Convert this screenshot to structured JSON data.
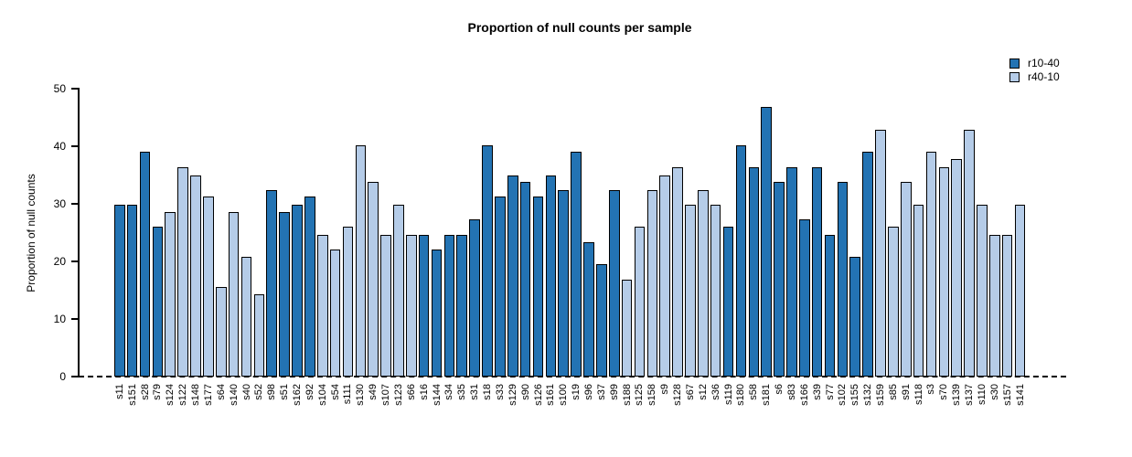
{
  "chart_data": {
    "type": "bar",
    "title": "Proportion of null counts per sample",
    "ylabel": "Proportion of null counts",
    "xlabel": "",
    "ylim": [
      0,
      50
    ],
    "yticks": [
      0,
      10,
      20,
      30,
      40,
      50
    ],
    "grid": false,
    "zero_line": {
      "value": 0,
      "style": "dashed",
      "color": "#000000"
    },
    "bar_border_color": "#000000",
    "legend": {
      "position": "top-right",
      "entries": [
        {
          "label": "r10-40",
          "color": "#2373b3"
        },
        {
          "label": "r40-10",
          "color": "#b5cce8"
        }
      ]
    },
    "samples": [
      {
        "label": "s11",
        "value": 29.8,
        "group": "r10-40"
      },
      {
        "label": "s151",
        "value": 29.8,
        "group": "r10-40"
      },
      {
        "label": "s28",
        "value": 39.0,
        "group": "r10-40"
      },
      {
        "label": "s79",
        "value": 26.0,
        "group": "r10-40"
      },
      {
        "label": "s124",
        "value": 28.6,
        "group": "r40-10"
      },
      {
        "label": "s122",
        "value": 36.4,
        "group": "r40-10"
      },
      {
        "label": "s148",
        "value": 35.0,
        "group": "r40-10"
      },
      {
        "label": "s177",
        "value": 31.2,
        "group": "r40-10"
      },
      {
        "label": "s64",
        "value": 15.6,
        "group": "r40-10"
      },
      {
        "label": "s140",
        "value": 28.6,
        "group": "r40-10"
      },
      {
        "label": "s40",
        "value": 20.8,
        "group": "r40-10"
      },
      {
        "label": "s52",
        "value": 14.3,
        "group": "r40-10"
      },
      {
        "label": "s98",
        "value": 32.4,
        "group": "r10-40"
      },
      {
        "label": "s51",
        "value": 28.6,
        "group": "r10-40"
      },
      {
        "label": "s162",
        "value": 29.8,
        "group": "r10-40"
      },
      {
        "label": "s92",
        "value": 31.2,
        "group": "r10-40"
      },
      {
        "label": "s104",
        "value": 24.6,
        "group": "r40-10"
      },
      {
        "label": "s54",
        "value": 22.1,
        "group": "r40-10"
      },
      {
        "label": "s111",
        "value": 26.0,
        "group": "r40-10"
      },
      {
        "label": "s130",
        "value": 40.1,
        "group": "r40-10"
      },
      {
        "label": "s49",
        "value": 33.8,
        "group": "r40-10"
      },
      {
        "label": "s107",
        "value": 24.6,
        "group": "r40-10"
      },
      {
        "label": "s123",
        "value": 29.8,
        "group": "r40-10"
      },
      {
        "label": "s66",
        "value": 24.6,
        "group": "r40-10"
      },
      {
        "label": "s16",
        "value": 24.6,
        "group": "r10-40"
      },
      {
        "label": "s144",
        "value": 22.1,
        "group": "r10-40"
      },
      {
        "label": "s34",
        "value": 24.6,
        "group": "r10-40"
      },
      {
        "label": "s35",
        "value": 24.6,
        "group": "r10-40"
      },
      {
        "label": "s31",
        "value": 27.3,
        "group": "r10-40"
      },
      {
        "label": "s18",
        "value": 40.1,
        "group": "r10-40"
      },
      {
        "label": "s33",
        "value": 31.2,
        "group": "r10-40"
      },
      {
        "label": "s129",
        "value": 35.0,
        "group": "r10-40"
      },
      {
        "label": "s90",
        "value": 33.8,
        "group": "r10-40"
      },
      {
        "label": "s126",
        "value": 31.2,
        "group": "r10-40"
      },
      {
        "label": "s161",
        "value": 35.0,
        "group": "r10-40"
      },
      {
        "label": "s100",
        "value": 32.4,
        "group": "r10-40"
      },
      {
        "label": "s19",
        "value": 39.0,
        "group": "r10-40"
      },
      {
        "label": "s96",
        "value": 23.4,
        "group": "r10-40"
      },
      {
        "label": "s37",
        "value": 19.5,
        "group": "r10-40"
      },
      {
        "label": "s99",
        "value": 32.4,
        "group": "r10-40"
      },
      {
        "label": "s188",
        "value": 16.9,
        "group": "r40-10"
      },
      {
        "label": "s125",
        "value": 26.0,
        "group": "r40-10"
      },
      {
        "label": "s158",
        "value": 32.4,
        "group": "r40-10"
      },
      {
        "label": "s9",
        "value": 35.0,
        "group": "r40-10"
      },
      {
        "label": "s128",
        "value": 36.4,
        "group": "r40-10"
      },
      {
        "label": "s67",
        "value": 29.8,
        "group": "r40-10"
      },
      {
        "label": "s12",
        "value": 32.4,
        "group": "r40-10"
      },
      {
        "label": "s36",
        "value": 29.8,
        "group": "r40-10"
      },
      {
        "label": "s119",
        "value": 26.0,
        "group": "r10-40"
      },
      {
        "label": "s180",
        "value": 40.1,
        "group": "r10-40"
      },
      {
        "label": "s58",
        "value": 36.4,
        "group": "r10-40"
      },
      {
        "label": "s181",
        "value": 46.8,
        "group": "r10-40"
      },
      {
        "label": "s6",
        "value": 33.8,
        "group": "r10-40"
      },
      {
        "label": "s83",
        "value": 36.4,
        "group": "r10-40"
      },
      {
        "label": "s166",
        "value": 27.3,
        "group": "r10-40"
      },
      {
        "label": "s39",
        "value": 36.4,
        "group": "r10-40"
      },
      {
        "label": "s77",
        "value": 24.6,
        "group": "r10-40"
      },
      {
        "label": "s102",
        "value": 33.8,
        "group": "r10-40"
      },
      {
        "label": "s155",
        "value": 20.8,
        "group": "r10-40"
      },
      {
        "label": "s132",
        "value": 39.0,
        "group": "r10-40"
      },
      {
        "label": "s159",
        "value": 42.8,
        "group": "r40-10"
      },
      {
        "label": "s85",
        "value": 26.0,
        "group": "r40-10"
      },
      {
        "label": "s91",
        "value": 33.8,
        "group": "r40-10"
      },
      {
        "label": "s118",
        "value": 29.8,
        "group": "r40-10"
      },
      {
        "label": "s3",
        "value": 39.0,
        "group": "r40-10"
      },
      {
        "label": "s70",
        "value": 36.4,
        "group": "r40-10"
      },
      {
        "label": "s139",
        "value": 37.7,
        "group": "r40-10"
      },
      {
        "label": "s137",
        "value": 42.8,
        "group": "r40-10"
      },
      {
        "label": "s110",
        "value": 29.8,
        "group": "r40-10"
      },
      {
        "label": "s30",
        "value": 24.6,
        "group": "r40-10"
      },
      {
        "label": "s157",
        "value": 24.6,
        "group": "r40-10"
      },
      {
        "label": "s141",
        "value": 29.8,
        "group": "r40-10"
      }
    ]
  }
}
